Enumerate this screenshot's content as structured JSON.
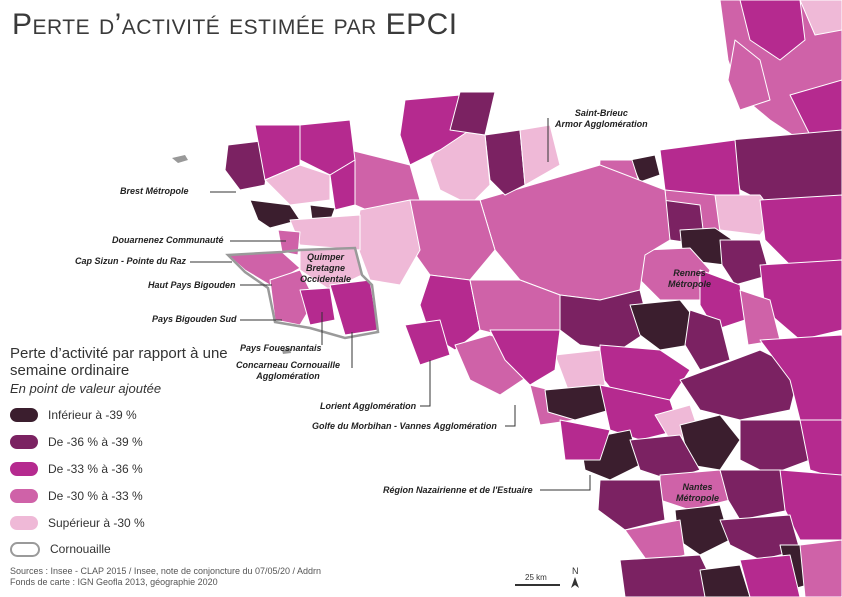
{
  "title": "Perte d’activité estimée par EPCI",
  "colors": {
    "c1": "#3b1e2e",
    "c2": "#7b2262",
    "c3": "#b52a8f",
    "c4": "#cf62a8",
    "c5": "#efb9d7",
    "cornouaille_border": "#9a9a9a",
    "leader": "#333333"
  },
  "labels": {
    "brest": "Brest Métropole",
    "douarnenez": "Douarnenez Communauté",
    "cap_sizun": "Cap Sizun - Pointe du Raz",
    "haut_pays": "Haut Pays Bigouden",
    "pays_bigouden_sud": "Pays Bigouden Sud",
    "pays_fouesnantais": "Pays Fouesnantais",
    "concarneau": "Concarneau Cornouaille\nAgglomération",
    "quimper": "Quimper\nBretagne\nOccidentale",
    "saint_brieuc": "Saint-Brieuc\nArmor Agglomération",
    "rennes": "Rennes\nMétropole",
    "lorient": "Lorient Agglomération",
    "golfe": "Golfe du Morbihan - Vannes Agglomération",
    "saint_nazaire": "Région Nazairienne et de l'Estuaire",
    "nantes": "Nantes\nMétropole"
  },
  "legend": {
    "title": "Perte d’activité par rapport à une semaine ordinaire",
    "subtitle": "En point de valeur ajoutée",
    "items": [
      {
        "label": "Inférieur à -39 %",
        "color": "#3b1e2e"
      },
      {
        "label": "De -36 % à -39 %",
        "color": "#7b2262"
      },
      {
        "label": "De -33 % à -36 %",
        "color": "#b52a8f"
      },
      {
        "label": "De -30 % à -33 %",
        "color": "#cf62a8"
      },
      {
        "label": "Supérieur à -30 %",
        "color": "#efb9d7"
      },
      {
        "label": "Cornouaille",
        "color": "#ffffff"
      }
    ]
  },
  "sources": {
    "line1": "Sources : Insee - CLAP 2015 / Insee, note de conjoncture du 07/05/20 / Addrn",
    "line2": "Fonds de carte : IGN Geofla 2013, géographie 2020"
  },
  "scale": {
    "label": "25 km"
  },
  "north": {
    "label": "N"
  }
}
